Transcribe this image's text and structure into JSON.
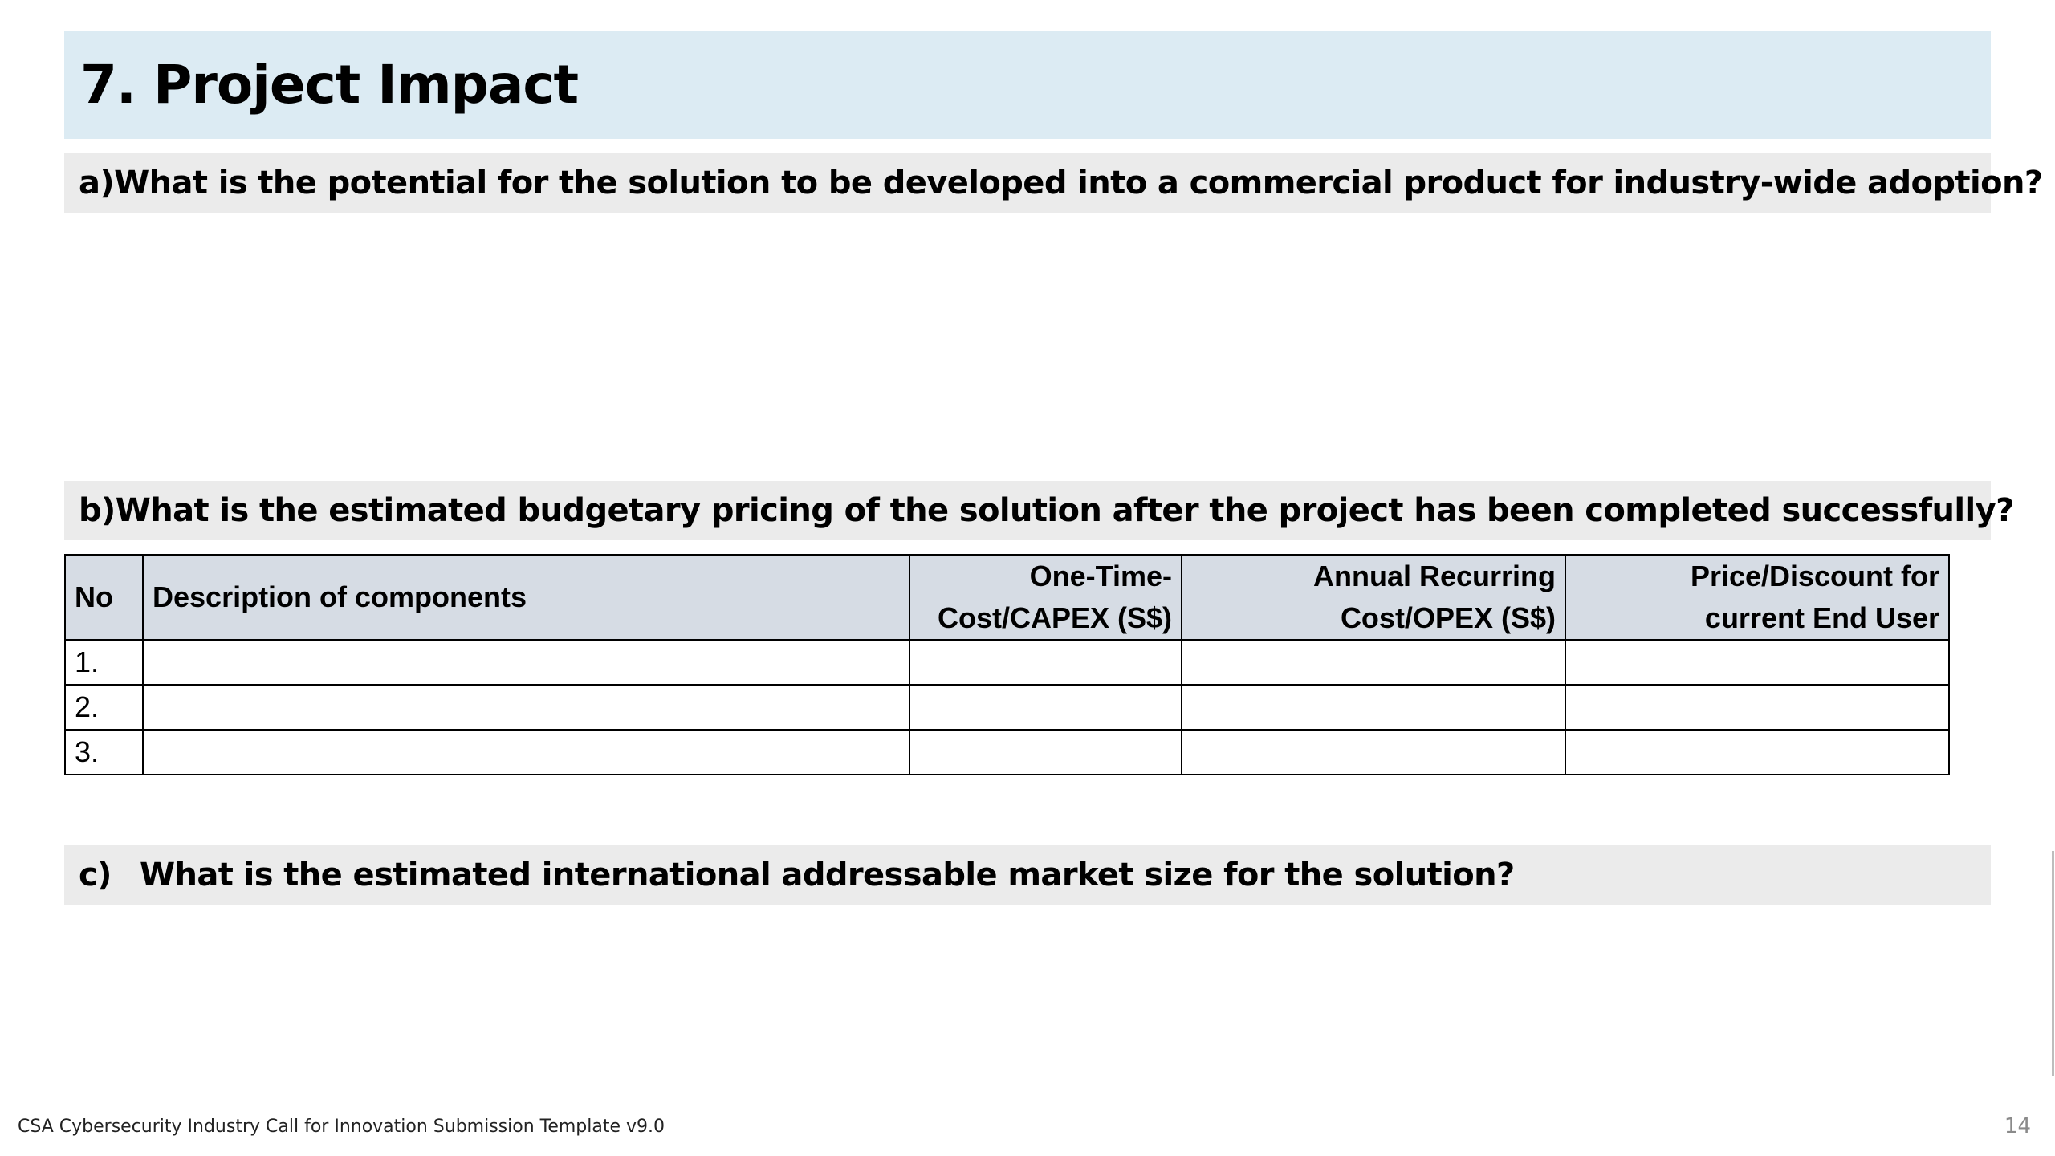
{
  "slide": {
    "title": "7. Project Impact",
    "page_number": "14",
    "footer": "CSA Cybersecurity Industry Call for Innovation Submission Template v9.0"
  },
  "questions": [
    {
      "letter": "a)",
      "text": "What is the potential for the solution to be developed into a commercial product for industry-wide adoption?"
    },
    {
      "letter": "b)",
      "text": "What is the estimated budgetary pricing of the solution after the project has been completed successfully?"
    },
    {
      "letter": "c)",
      "text": "What is the estimated international addressable market size for the solution?"
    }
  ],
  "pricing_table": {
    "headers": {
      "no": "No",
      "description": "Description of components",
      "capex_line1": "One-Time-",
      "capex_line2": "Cost/CAPEX (S$)",
      "opex_line1": "Annual Recurring",
      "opex_line2": "Cost/OPEX (S$)",
      "price_line1": "Price/Discount for",
      "price_line2": "current End User"
    },
    "rows": [
      {
        "no": "1.",
        "description": "",
        "capex": "",
        "opex": "",
        "price": ""
      },
      {
        "no": "2.",
        "description": "",
        "capex": "",
        "opex": "",
        "price": ""
      },
      {
        "no": "3.",
        "description": "",
        "capex": "",
        "opex": "",
        "price": ""
      }
    ]
  },
  "colors": {
    "title_background": "#dcebf3",
    "question_background": "#ebebeb",
    "table_header_background": "#d6dce4"
  }
}
